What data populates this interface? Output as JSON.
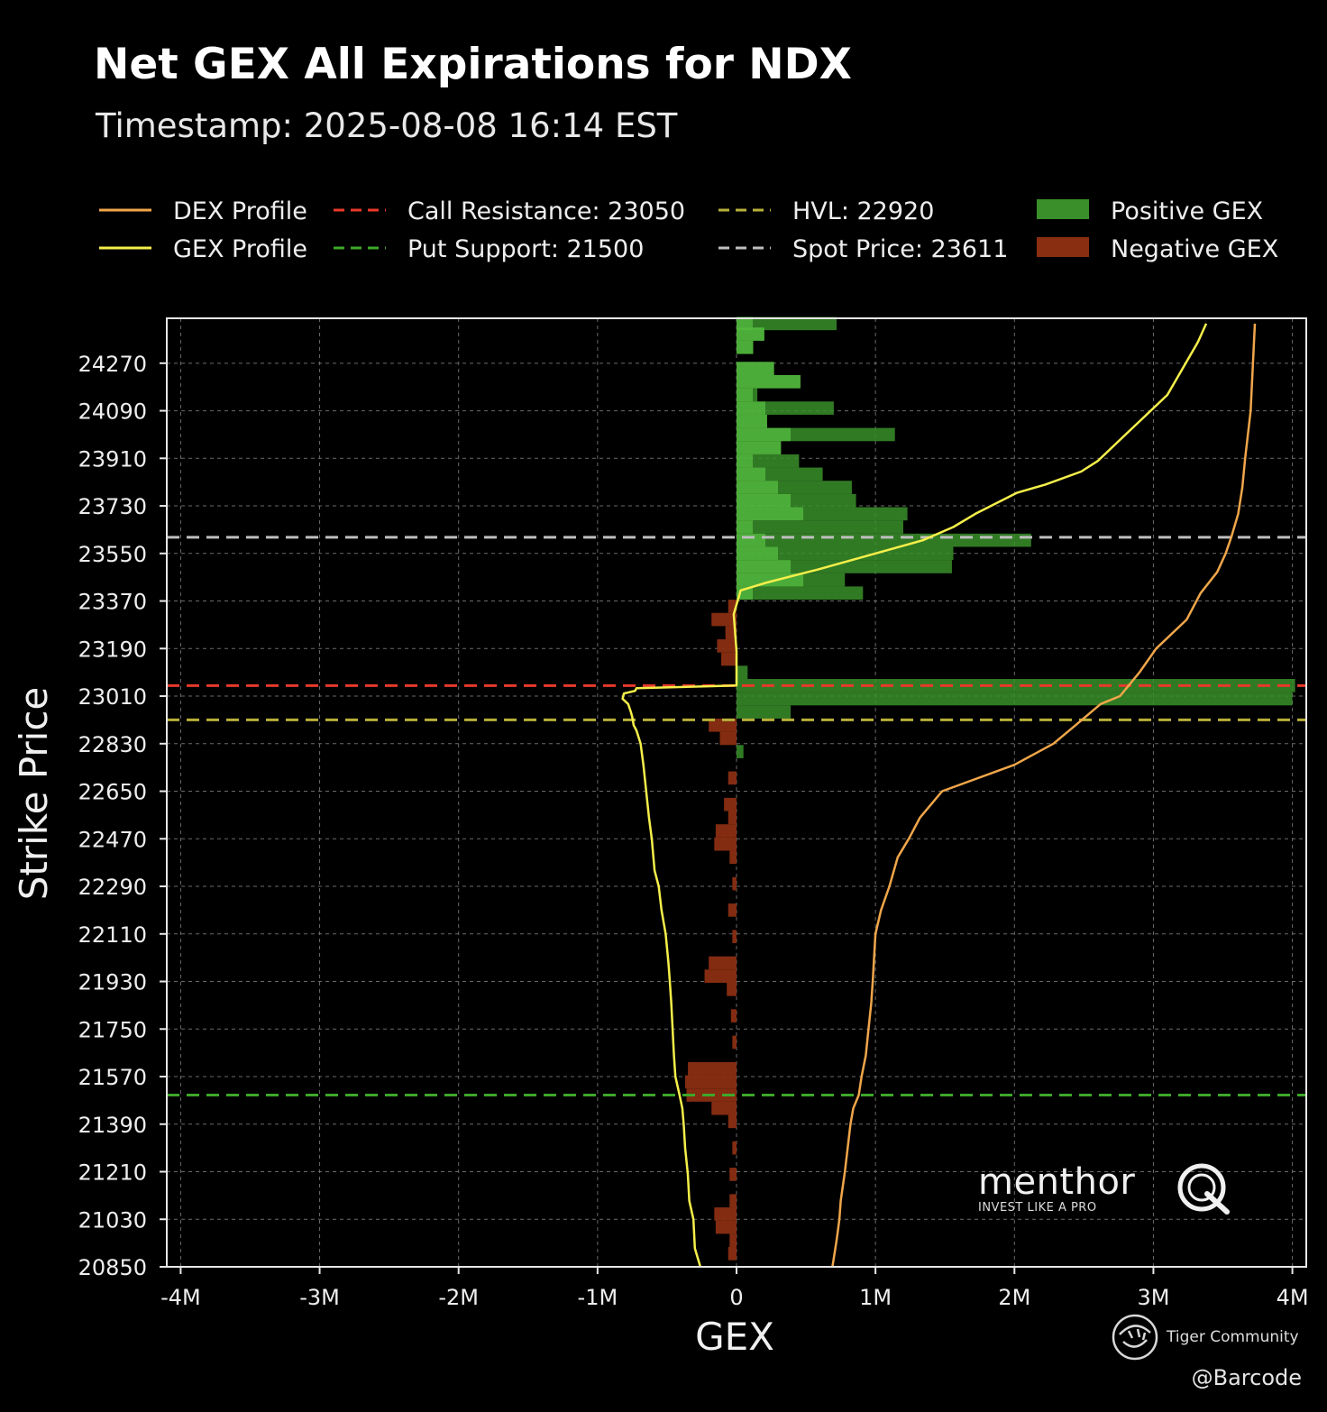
{
  "title": "Net GEX All Expirations for NDX",
  "subtitle": "Timestamp: 2025-08-08 16:14 EST",
  "legend": [
    {
      "label": "DEX Profile",
      "style": "solid",
      "color": "#f0a64a"
    },
    {
      "label": "GEX Profile",
      "style": "solid",
      "color": "#f5ef4a"
    },
    {
      "label": "Call Resistance: 23050",
      "style": "dashed",
      "color": "#e8392a"
    },
    {
      "label": "Put Support: 21500",
      "style": "dashed",
      "color": "#3ea82a"
    },
    {
      "label": "HVL: 22920",
      "style": "dashed",
      "color": "#b8b03a"
    },
    {
      "label": "Spot Price: 23611",
      "style": "dashed",
      "color": "#bfbfbf"
    },
    {
      "label": "Positive GEX",
      "style": "patch",
      "color": "#3a8f2a"
    },
    {
      "label": "Negative GEX",
      "style": "patch",
      "color": "#8a2e12"
    }
  ],
  "watermark": {
    "brand": "menthor",
    "brand_mark": "Q",
    "tagline": "INVEST LIKE A PRO",
    "community": "Tiger Community",
    "handle": "@Barcode"
  },
  "chart_data": {
    "type": "bar",
    "orientation": "horizontal",
    "title": "Net GEX All Expirations for NDX",
    "subtitle": "Timestamp: 2025-08-08 16:14 EST",
    "xlabel": "GEX",
    "ylabel": "Strike Price",
    "xlim": [
      -4100000,
      4100000
    ],
    "ylim": [
      20850,
      24440
    ],
    "xticks": [
      -4000000,
      -3000000,
      -2000000,
      -1000000,
      0,
      1000000,
      2000000,
      3000000,
      4000000
    ],
    "xtick_labels": [
      "-4M",
      "-3M",
      "-2M",
      "-1M",
      "0",
      "1M",
      "2M",
      "3M",
      "4M"
    ],
    "yticks": [
      20850,
      21030,
      21210,
      21390,
      21570,
      21750,
      21930,
      22110,
      22290,
      22470,
      22650,
      22830,
      23010,
      23190,
      23370,
      23550,
      23730,
      23910,
      24090,
      24270
    ],
    "grid": true,
    "legend_position": "top",
    "reference_lines": [
      {
        "name": "Call Resistance",
        "value": 23050,
        "color": "#e8392a"
      },
      {
        "name": "Put Support",
        "value": 21500,
        "color": "#3ea82a"
      },
      {
        "name": "HVL",
        "value": 22920,
        "color": "#b8b03a"
      },
      {
        "name": "Spot Price",
        "value": 23611,
        "color": "#bfbfbf"
      }
    ],
    "bars": [
      {
        "strike": 24420,
        "value": 720000
      },
      {
        "strike": 24380,
        "value": 200000
      },
      {
        "strike": 24330,
        "value": 120000
      },
      {
        "strike": 24250,
        "value": 270000
      },
      {
        "strike": 24200,
        "value": 460000
      },
      {
        "strike": 24150,
        "value": 150000
      },
      {
        "strike": 24100,
        "value": 700000
      },
      {
        "strike": 24050,
        "value": 220000
      },
      {
        "strike": 24000,
        "value": 1140000
      },
      {
        "strike": 23950,
        "value": 320000
      },
      {
        "strike": 23900,
        "value": 450000
      },
      {
        "strike": 23850,
        "value": 620000
      },
      {
        "strike": 23800,
        "value": 830000
      },
      {
        "strike": 23750,
        "value": 860000
      },
      {
        "strike": 23700,
        "value": 1230000
      },
      {
        "strike": 23650,
        "value": 1200000
      },
      {
        "strike": 23600,
        "value": 2120000
      },
      {
        "strike": 23550,
        "value": 1560000
      },
      {
        "strike": 23500,
        "value": 1550000
      },
      {
        "strike": 23450,
        "value": 780000
      },
      {
        "strike": 23400,
        "value": 910000
      },
      {
        "strike": 23350,
        "value": -60000
      },
      {
        "strike": 23300,
        "value": -180000
      },
      {
        "strike": 23250,
        "value": -80000
      },
      {
        "strike": 23200,
        "value": -140000
      },
      {
        "strike": 23150,
        "value": -110000
      },
      {
        "strike": 23100,
        "value": 80000
      },
      {
        "strike": 23050,
        "value": 4020000
      },
      {
        "strike": 23000,
        "value": 4000000
      },
      {
        "strike": 22950,
        "value": 390000
      },
      {
        "strike": 22900,
        "value": -200000
      },
      {
        "strike": 22850,
        "value": -120000
      },
      {
        "strike": 22800,
        "value": 50000
      },
      {
        "strike": 22700,
        "value": -60000
      },
      {
        "strike": 22600,
        "value": -90000
      },
      {
        "strike": 22550,
        "value": -60000
      },
      {
        "strike": 22500,
        "value": -150000
      },
      {
        "strike": 22450,
        "value": -160000
      },
      {
        "strike": 22400,
        "value": -50000
      },
      {
        "strike": 22300,
        "value": -30000
      },
      {
        "strike": 22200,
        "value": -60000
      },
      {
        "strike": 22100,
        "value": -30000
      },
      {
        "strike": 22000,
        "value": -200000
      },
      {
        "strike": 21950,
        "value": -230000
      },
      {
        "strike": 21900,
        "value": -70000
      },
      {
        "strike": 21800,
        "value": -40000
      },
      {
        "strike": 21700,
        "value": -30000
      },
      {
        "strike": 21600,
        "value": -350000
      },
      {
        "strike": 21550,
        "value": -370000
      },
      {
        "strike": 21500,
        "value": -360000
      },
      {
        "strike": 21450,
        "value": -180000
      },
      {
        "strike": 21400,
        "value": -60000
      },
      {
        "strike": 21300,
        "value": -30000
      },
      {
        "strike": 21200,
        "value": -50000
      },
      {
        "strike": 21100,
        "value": -50000
      },
      {
        "strike": 21050,
        "value": -160000
      },
      {
        "strike": 21000,
        "value": -150000
      },
      {
        "strike": 20950,
        "value": -50000
      },
      {
        "strike": 20900,
        "value": -60000
      }
    ],
    "series": [
      {
        "name": "GEX Profile",
        "x": [
          -260000,
          -300000,
          -310000,
          -340000,
          -350000,
          -370000,
          -380000,
          -390000,
          -410000,
          -440000,
          -450000,
          -460000,
          -470000,
          -480000,
          -490000,
          -510000,
          -540000,
          -560000,
          -590000,
          -610000,
          -630000,
          -650000,
          -670000,
          -690000,
          -720000,
          -740000,
          -750000,
          -760000,
          -780000,
          -820000,
          -810000,
          -730000,
          -720000,
          0,
          0,
          -20000,
          30000,
          220000,
          590000,
          1340000,
          1560000,
          1720000,
          2020000,
          2220000,
          2480000,
          2600000,
          2800000,
          3100000,
          3320000,
          3380000
        ],
        "y": [
          20850,
          20920,
          21030,
          21100,
          21200,
          21300,
          21390,
          21450,
          21500,
          21570,
          21650,
          21750,
          21850,
          21930,
          22000,
          22110,
          22200,
          22290,
          22350,
          22470,
          22550,
          22650,
          22750,
          22830,
          22880,
          22900,
          22930,
          22950,
          22980,
          23000,
          23020,
          23030,
          23040,
          23050,
          23180,
          23320,
          23410,
          23440,
          23490,
          23600,
          23650,
          23700,
          23780,
          23810,
          23860,
          23900,
          24000,
          24150,
          24350,
          24420
        ]
      },
      {
        "name": "DEX Profile",
        "x": [
          690000,
          720000,
          740000,
          750000,
          780000,
          800000,
          820000,
          840000,
          880000,
          900000,
          930000,
          950000,
          970000,
          980000,
          1000000,
          1040000,
          1100000,
          1160000,
          1240000,
          1320000,
          1480000,
          2000000,
          2280000,
          2440000,
          2620000,
          2760000,
          2900000,
          3020000,
          3240000,
          3340000,
          3460000,
          3520000,
          3560000,
          3610000,
          3640000,
          3660000,
          3700000,
          3730000
        ],
        "y": [
          20850,
          20950,
          21030,
          21100,
          21210,
          21300,
          21390,
          21450,
          21500,
          21570,
          21650,
          21750,
          21850,
          21930,
          22110,
          22200,
          22290,
          22400,
          22470,
          22550,
          22650,
          22750,
          22830,
          22900,
          22980,
          23010,
          23100,
          23190,
          23300,
          23400,
          23480,
          23550,
          23611,
          23700,
          23800,
          23910,
          24090,
          24420
        ]
      }
    ]
  }
}
